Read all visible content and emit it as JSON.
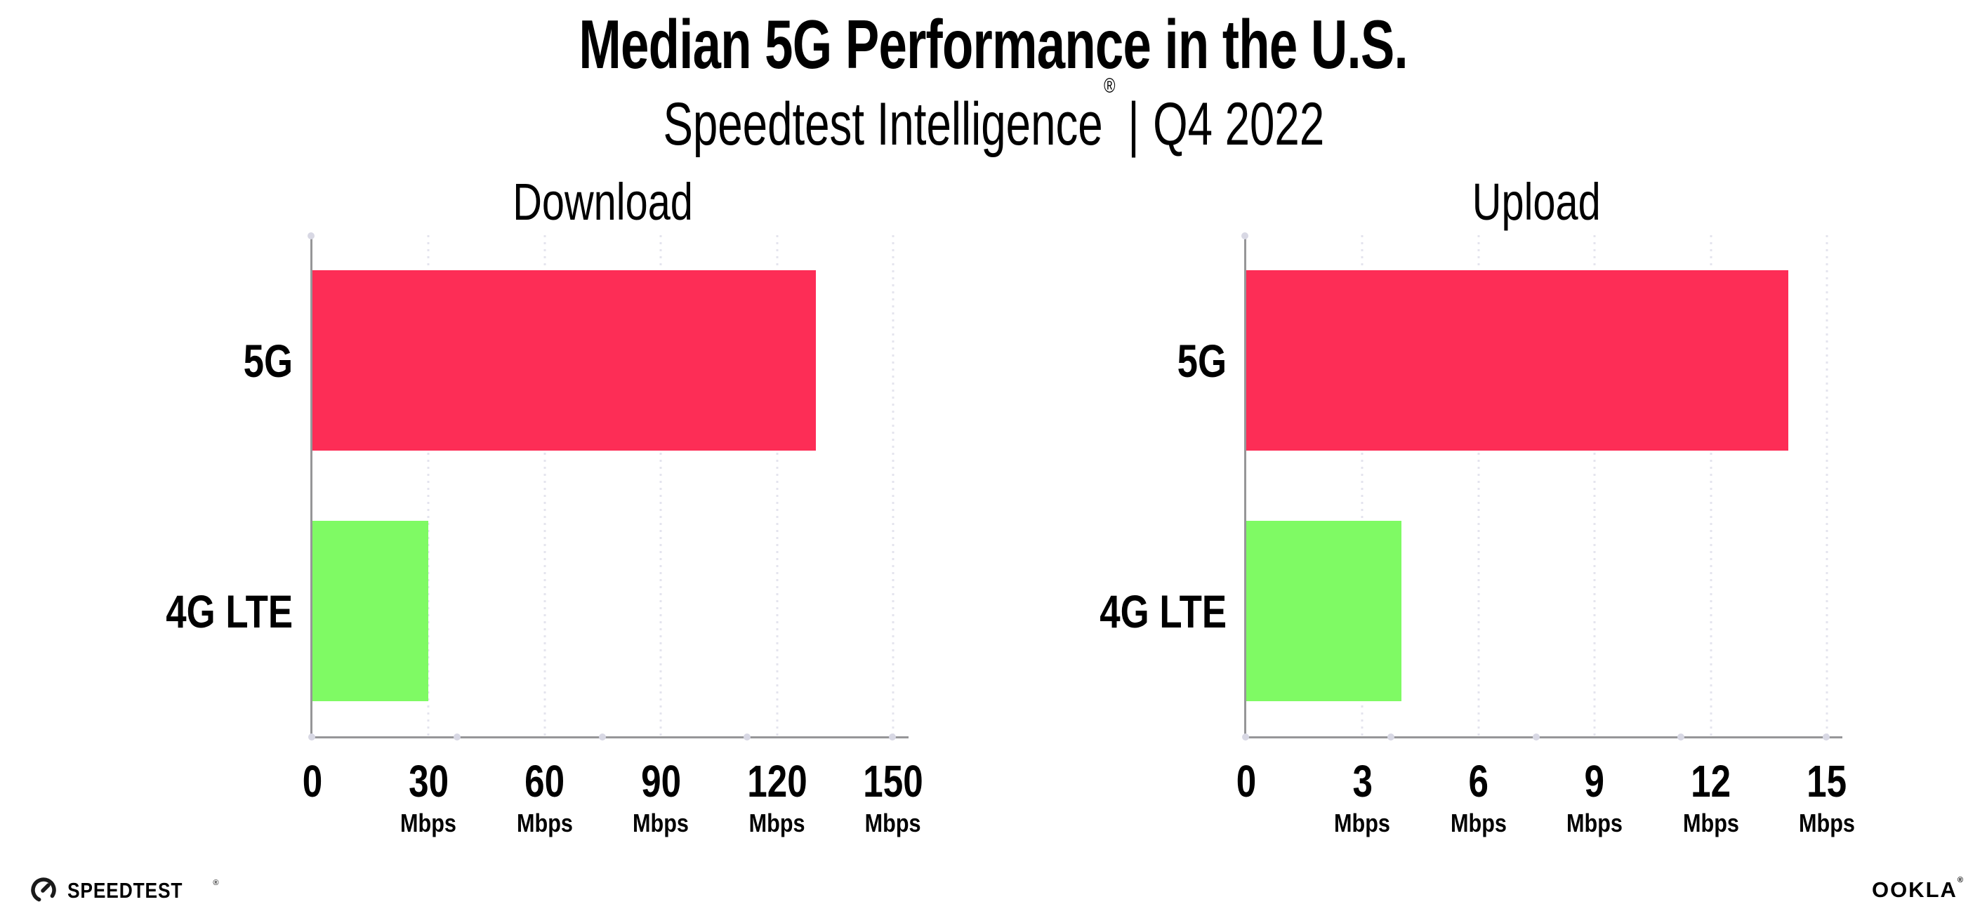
{
  "header": {
    "title": "Median 5G Performance in the U.S.",
    "subtitle": {
      "brand": "Speedtest Intelligence",
      "registered_mark": "®",
      "separator": "|",
      "period": "Q4 2022"
    }
  },
  "chart_data": [
    {
      "type": "bar",
      "orientation": "horizontal",
      "title": "Download",
      "categories": [
        "5G",
        "4G LTE"
      ],
      "values": [
        130,
        30
      ],
      "unit": "Mbps",
      "xlim": [
        0,
        150
      ],
      "xticks": [
        0,
        30,
        60,
        90,
        120,
        150
      ],
      "grid": true,
      "legend": "none",
      "bar_colors": [
        "#fd2d56",
        "#7ffa64"
      ]
    },
    {
      "type": "bar",
      "orientation": "horizontal",
      "title": "Upload",
      "categories": [
        "5G",
        "4G LTE"
      ],
      "values": [
        14,
        4
      ],
      "unit": "Mbps",
      "xlim": [
        0,
        15
      ],
      "xticks": [
        0,
        3,
        6,
        9,
        12,
        15
      ],
      "grid": true,
      "legend": "none",
      "bar_colors": [
        "#fd2d56",
        "#7ffa64"
      ]
    }
  ],
  "footer": {
    "speedtest_wordmark": "SPEEDTEST",
    "speedtest_mark": "®",
    "ookla_wordmark": "OOKLA",
    "ookla_mark": "®"
  },
  "colors": {
    "bar_5g": "#fd2d56",
    "bar_4g_lte": "#7ffa64",
    "axis_line": "#969698",
    "gridline": "#e4e4ee",
    "text": "#000000",
    "background": "#ffffff"
  }
}
